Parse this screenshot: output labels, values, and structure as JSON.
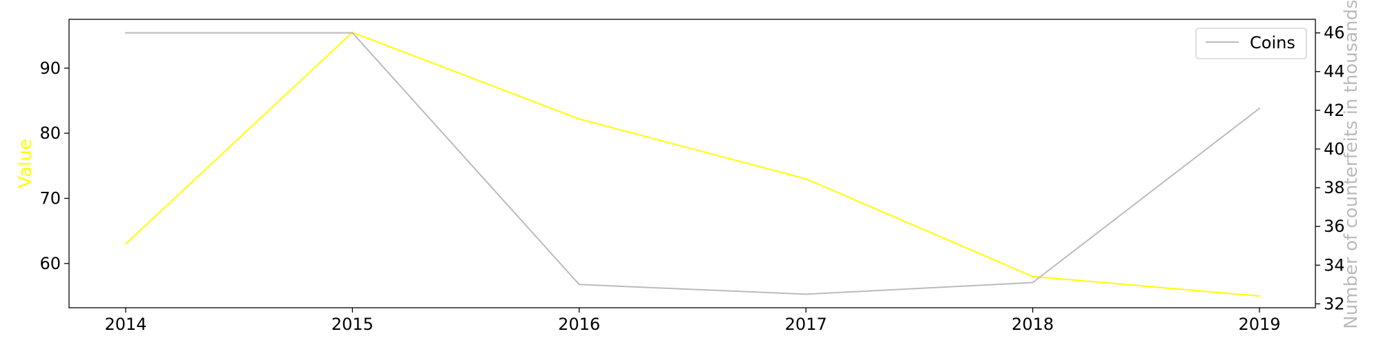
{
  "chart_data": {
    "type": "line",
    "x": [
      "2014",
      "2015",
      "2016",
      "2017",
      "2018",
      "2019"
    ],
    "series": [
      {
        "axis": "left",
        "values": [
          63,
          95.5,
          82.2,
          73,
          58,
          55
        ],
        "color": "#ffff00"
      },
      {
        "name": "Coins",
        "axis": "right",
        "values": [
          46,
          46,
          33,
          32.5,
          33.1,
          42.1
        ],
        "color": "#bbbbbb"
      }
    ],
    "ylabel": "Value",
    "ylabel_color": "#ffff00",
    "y2label": "Number of counterfeits in thousands",
    "y2label_color": "#bbbbbb",
    "ylim": [
      53.2,
      97.5
    ],
    "y2lim": [
      31.8,
      46.7
    ],
    "yticks": [
      60,
      70,
      80,
      90
    ],
    "y2ticks": [
      32,
      34,
      36,
      38,
      40,
      42,
      44,
      46
    ],
    "grid": false,
    "legend": {
      "position": "top-right",
      "entries": [
        "Coins"
      ]
    }
  }
}
